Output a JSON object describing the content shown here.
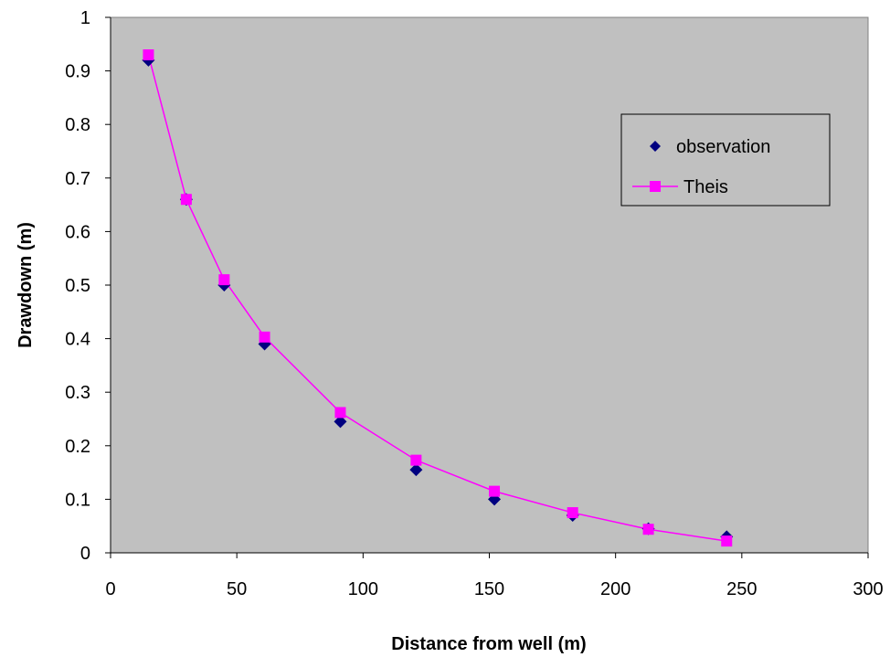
{
  "chart_data": {
    "type": "scatter",
    "xlabel": "Distance from well (m)",
    "ylabel": "Drawdown (m)",
    "xlim": [
      0,
      300
    ],
    "ylim": [
      0,
      1
    ],
    "xticks": [
      "0",
      "50",
      "100",
      "150",
      "200",
      "250",
      "300"
    ],
    "yticks": [
      "0",
      "0.1",
      "0.2",
      "0.3",
      "0.4",
      "0.5",
      "0.6",
      "0.7",
      "0.8",
      "0.9",
      "1"
    ],
    "grid": false,
    "legend_position": "right",
    "plot_background": "#c0c0c0",
    "series": [
      {
        "name": "observation",
        "marker": "diamond",
        "line": false,
        "color": "#000080",
        "x": [
          15,
          30,
          45,
          61,
          91,
          121,
          152,
          183,
          213,
          244
        ],
        "y": [
          0.92,
          0.66,
          0.5,
          0.39,
          0.245,
          0.155,
          0.1,
          0.07,
          0.045,
          0.03
        ]
      },
      {
        "name": "Theis",
        "marker": "square",
        "line": true,
        "color": "#ff00ff",
        "x": [
          15,
          30,
          45,
          61,
          91,
          121,
          152,
          183,
          213,
          244
        ],
        "y": [
          0.93,
          0.66,
          0.51,
          0.403,
          0.262,
          0.173,
          0.115,
          0.075,
          0.044,
          0.022
        ]
      }
    ]
  }
}
